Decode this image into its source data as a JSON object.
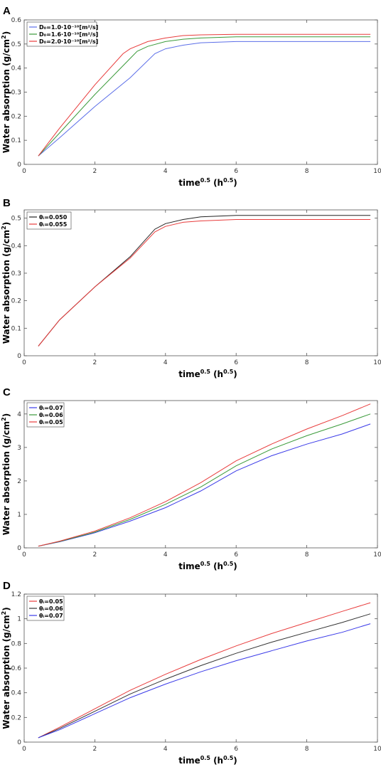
{
  "chart_data": [
    {
      "panel": "A",
      "type": "line",
      "xlabel": "time",
      "xlabel_sup": "0.5",
      "xlabel_unit": " (h",
      "xlabel_unit_sup": "0.5",
      "xlabel_close": ")",
      "ylabel": "Water absorption (g/cm",
      "ylabel_sup": "2",
      "ylabel_close": ")",
      "xlim": [
        0,
        10
      ],
      "ylim": [
        0,
        0.6
      ],
      "xticks": [
        "0",
        "2",
        "4",
        "6",
        "8",
        "10"
      ],
      "yticks": [
        "0",
        "0.1",
        "0.2",
        "0.3",
        "0.4",
        "0.5",
        "0.6"
      ],
      "grid": false,
      "legend_position": "top-left",
      "series": [
        {
          "name": "D₀=1.0·10⁻¹⁰[m²/s]",
          "color": "#5b6ee8",
          "x": [
            0.4,
            1,
            2,
            3,
            3.7,
            4,
            4.5,
            5,
            6,
            8,
            9.8
          ],
          "y": [
            0.035,
            0.11,
            0.24,
            0.36,
            0.46,
            0.48,
            0.495,
            0.505,
            0.51,
            0.51,
            0.51
          ]
        },
        {
          "name": "D₀=1.6·10⁻¹⁰[m²/s]",
          "color": "#3a9a3a",
          "x": [
            0.4,
            1,
            2,
            3,
            3.2,
            3.5,
            4,
            4.5,
            5,
            6,
            8,
            9.8
          ],
          "y": [
            0.035,
            0.13,
            0.29,
            0.44,
            0.47,
            0.49,
            0.51,
            0.52,
            0.525,
            0.53,
            0.53,
            0.53
          ]
        },
        {
          "name": "D₀=2.0·10⁻¹⁰[m²/s]",
          "color": "#e83c3c",
          "x": [
            0.4,
            1,
            2,
            2.8,
            3,
            3.5,
            4,
            4.5,
            5,
            6,
            8,
            9.8
          ],
          "y": [
            0.035,
            0.15,
            0.33,
            0.46,
            0.48,
            0.51,
            0.525,
            0.535,
            0.538,
            0.54,
            0.54,
            0.54
          ]
        }
      ]
    },
    {
      "panel": "B",
      "type": "line",
      "xlabel": "time",
      "xlabel_sup": "0.5",
      "xlabel_unit": " (h",
      "xlabel_unit_sup": "0.5",
      "xlabel_close": ")",
      "ylabel": "Water absorption (g/cm",
      "ylabel_sup": "2",
      "ylabel_close": ")",
      "xlim": [
        0,
        10
      ],
      "ylim": [
        0,
        0.53
      ],
      "xticks": [
        "0",
        "2",
        "4",
        "6",
        "8",
        "10"
      ],
      "yticks": [
        "0",
        "0.1",
        "0.2",
        "0.3",
        "0.4",
        "0.5"
      ],
      "grid": false,
      "legend_position": "top-left",
      "series": [
        {
          "name": "θᵢ=0.050",
          "color": "#222222",
          "x": [
            0.4,
            1,
            2,
            3,
            3.7,
            4,
            4.5,
            5,
            6,
            8,
            9.8
          ],
          "y": [
            0.035,
            0.13,
            0.25,
            0.36,
            0.46,
            0.48,
            0.495,
            0.505,
            0.51,
            0.51,
            0.51
          ]
        },
        {
          "name": "θᵢ=0.055",
          "color": "#e83c3c",
          "x": [
            0.4,
            1,
            2,
            3,
            3.7,
            4,
            4.5,
            5,
            6,
            8,
            9.8
          ],
          "y": [
            0.035,
            0.13,
            0.25,
            0.355,
            0.45,
            0.47,
            0.485,
            0.49,
            0.495,
            0.495,
            0.495
          ]
        }
      ]
    },
    {
      "panel": "C",
      "type": "line",
      "xlabel": "time",
      "xlabel_sup": "0.5",
      "xlabel_unit": " (h",
      "xlabel_unit_sup": "0.5",
      "xlabel_close": ")",
      "ylabel": "Water absorption (g/cm",
      "ylabel_sup": "2",
      "ylabel_close": ")",
      "xlim": [
        0,
        10
      ],
      "ylim": [
        0,
        4.4
      ],
      "xticks": [
        "0",
        "2",
        "4",
        "6",
        "8",
        "10"
      ],
      "yticks": [
        "0",
        "1",
        "2",
        "3",
        "4"
      ],
      "grid": false,
      "legend_position": "top-left",
      "series": [
        {
          "name": "θᵢ=0.07",
          "color": "#3a3ae8",
          "x": [
            0.4,
            1,
            2,
            3,
            4,
            5,
            6,
            7,
            8,
            9,
            9.8
          ],
          "y": [
            0.05,
            0.18,
            0.45,
            0.8,
            1.2,
            1.7,
            2.3,
            2.75,
            3.1,
            3.4,
            3.7
          ]
        },
        {
          "name": "θᵢ=0.06",
          "color": "#3a9a3a",
          "x": [
            0.4,
            1,
            2,
            3,
            4,
            5,
            6,
            7,
            8,
            9,
            9.8
          ],
          "y": [
            0.05,
            0.19,
            0.47,
            0.85,
            1.3,
            1.82,
            2.45,
            2.95,
            3.35,
            3.7,
            4.0
          ]
        },
        {
          "name": "θᵢ=0.05",
          "color": "#e83c3c",
          "x": [
            0.4,
            1,
            2,
            3,
            4,
            5,
            6,
            7,
            8,
            9,
            9.8
          ],
          "y": [
            0.05,
            0.2,
            0.5,
            0.9,
            1.38,
            1.95,
            2.6,
            3.1,
            3.55,
            3.95,
            4.3
          ]
        }
      ]
    },
    {
      "panel": "D",
      "type": "line",
      "xlabel": "time",
      "xlabel_sup": "0.5",
      "xlabel_unit": " (h",
      "xlabel_unit_sup": "0.5",
      "xlabel_close": ")",
      "ylabel": "Water absorption (g/cm",
      "ylabel_sup": "2",
      "ylabel_close": ")",
      "xlim": [
        0,
        10
      ],
      "ylim": [
        0,
        1.2
      ],
      "xticks": [
        "0",
        "2",
        "4",
        "6",
        "8",
        "10"
      ],
      "yticks": [
        "0",
        "0.2",
        "0.4",
        "0.6",
        "0.8",
        "1",
        "1.2"
      ],
      "grid": false,
      "legend_position": "top-left",
      "series": [
        {
          "name": "θᵢ=0.05",
          "color": "#e83c3c",
          "x": [
            0.4,
            1,
            2,
            3,
            4,
            5,
            6,
            7,
            8,
            9,
            9.8
          ],
          "y": [
            0.035,
            0.12,
            0.27,
            0.42,
            0.55,
            0.67,
            0.78,
            0.88,
            0.97,
            1.06,
            1.13
          ]
        },
        {
          "name": "θᵢ=0.06",
          "color": "#333333",
          "x": [
            0.4,
            1,
            2,
            3,
            4,
            5,
            6,
            7,
            8,
            9,
            9.8
          ],
          "y": [
            0.035,
            0.11,
            0.25,
            0.39,
            0.51,
            0.62,
            0.72,
            0.81,
            0.89,
            0.97,
            1.04
          ]
        },
        {
          "name": "θᵢ=0.07",
          "color": "#3a3ae8",
          "x": [
            0.4,
            1,
            2,
            3,
            4,
            5,
            6,
            7,
            8,
            9,
            9.8
          ],
          "y": [
            0.035,
            0.1,
            0.23,
            0.36,
            0.47,
            0.57,
            0.66,
            0.74,
            0.82,
            0.89,
            0.96
          ]
        }
      ]
    }
  ]
}
